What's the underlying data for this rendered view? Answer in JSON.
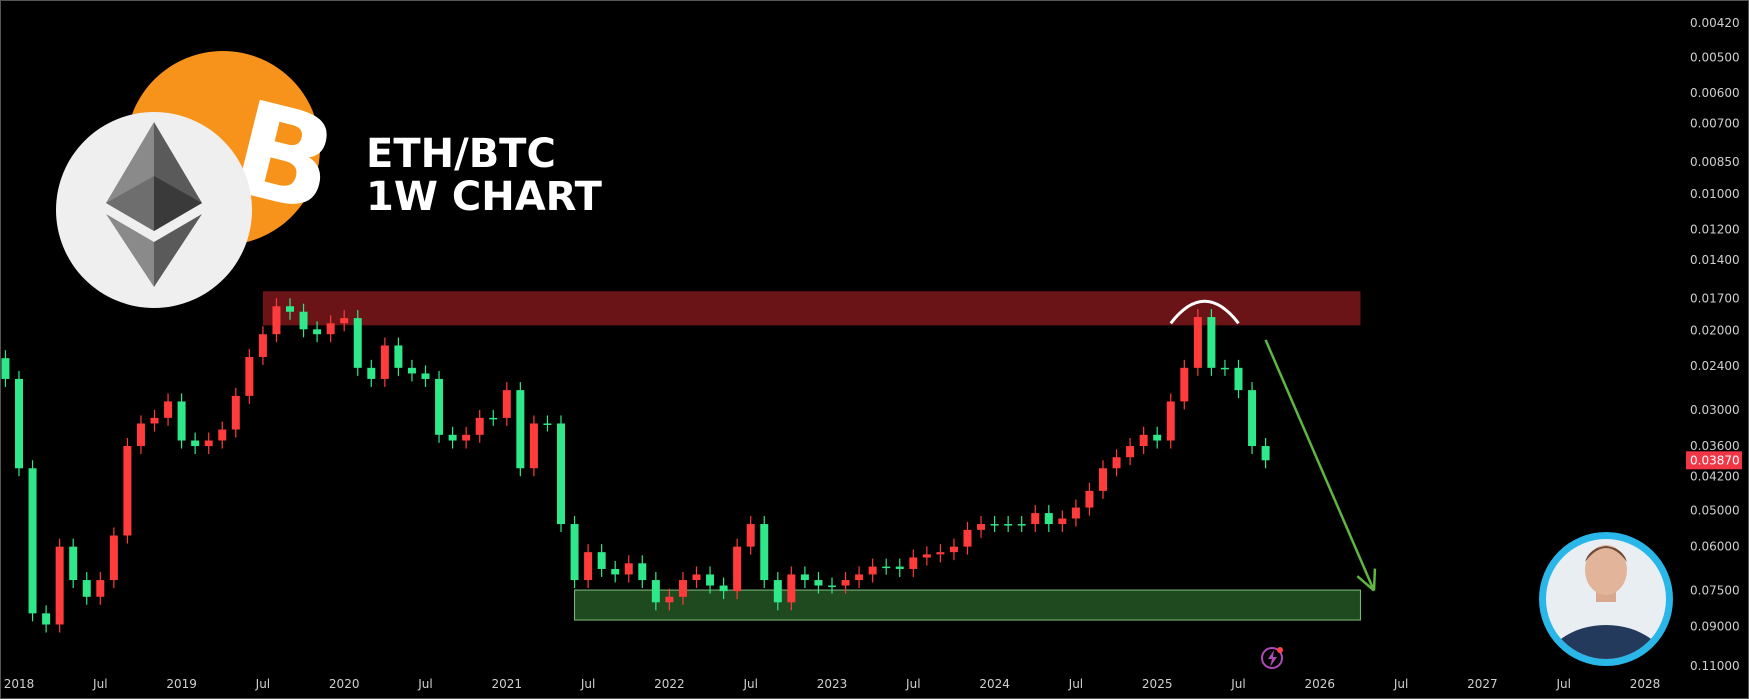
{
  "chart_data": {
    "type": "candlestick",
    "title_lines": [
      "ETH/BTC",
      "1W CHART"
    ],
    "y_scale": "log",
    "y_inverted": true,
    "ylim": [
      0.0042,
      0.11
    ],
    "xlim": [
      "2018-01",
      "2028-01"
    ],
    "y_ticks": [
      "0.00420",
      "0.00500",
      "0.00600",
      "0.00700",
      "0.00850",
      "0.01000",
      "0.01200",
      "0.01400",
      "0.01700",
      "0.02000",
      "0.02400",
      "0.03000",
      "0.03600",
      "0.04200",
      "0.05000",
      "0.06000",
      "0.07500",
      "0.09000",
      "0.11000"
    ],
    "x_ticks": [
      {
        "date": "2018-01",
        "label": "2018"
      },
      {
        "date": "2018-07",
        "label": "Jul"
      },
      {
        "date": "2019-01",
        "label": "2019"
      },
      {
        "date": "2019-07",
        "label": "Jul"
      },
      {
        "date": "2020-01",
        "label": "2020"
      },
      {
        "date": "2020-07",
        "label": "Jul"
      },
      {
        "date": "2021-01",
        "label": "2021"
      },
      {
        "date": "2021-07",
        "label": "Jul"
      },
      {
        "date": "2022-01",
        "label": "2022"
      },
      {
        "date": "2022-07",
        "label": "Jul"
      },
      {
        "date": "2023-01",
        "label": "2023"
      },
      {
        "date": "2023-07",
        "label": "Jul"
      },
      {
        "date": "2024-01",
        "label": "2024"
      },
      {
        "date": "2024-07",
        "label": "Jul"
      },
      {
        "date": "2025-01",
        "label": "2025"
      },
      {
        "date": "2025-07",
        "label": "Jul"
      },
      {
        "date": "2026-01",
        "label": "2026"
      },
      {
        "date": "2026-07",
        "label": "Jul"
      },
      {
        "date": "2027-01",
        "label": "2027"
      },
      {
        "date": "2027-07",
        "label": "Jul"
      },
      {
        "date": "2028-01",
        "label": "2028"
      }
    ],
    "last_price": "0.03870",
    "closes": [
      [
        "2017-12",
        0.0256
      ],
      [
        "2018-01",
        0.0403
      ],
      [
        "2018-02",
        0.0842
      ],
      [
        "2018-03",
        0.0891
      ],
      [
        "2018-04",
        0.06
      ],
      [
        "2018-05",
        0.0711
      ],
      [
        "2018-06",
        0.0774
      ],
      [
        "2018-07",
        0.0711
      ],
      [
        "2018-08",
        0.0567
      ],
      [
        "2018-09",
        0.036
      ],
      [
        "2018-10",
        0.0321
      ],
      [
        "2018-11",
        0.0312
      ],
      [
        "2018-12",
        0.0287
      ],
      [
        "2019-01",
        0.035
      ],
      [
        "2019-02",
        0.036
      ],
      [
        "2019-03",
        0.035
      ],
      [
        "2019-04",
        0.0331
      ],
      [
        "2019-05",
        0.0279
      ],
      [
        "2019-06",
        0.0229
      ],
      [
        "2019-07",
        0.0204
      ],
      [
        "2019-08",
        0.0177
      ],
      [
        "2019-09",
        0.0182
      ],
      [
        "2019-10",
        0.0199
      ],
      [
        "2019-11",
        0.0204
      ],
      [
        "2019-12",
        0.0193
      ],
      [
        "2020-01",
        0.0188
      ],
      [
        "2020-02",
        0.0242
      ],
      [
        "2020-03",
        0.0256
      ],
      [
        "2020-04",
        0.0216
      ],
      [
        "2020-05",
        0.0242
      ],
      [
        "2020-06",
        0.0249
      ],
      [
        "2020-07",
        0.0256
      ],
      [
        "2020-08",
        0.034
      ],
      [
        "2020-09",
        0.035
      ],
      [
        "2020-10",
        0.034
      ],
      [
        "2020-11",
        0.0312
      ],
      [
        "2020-12",
        0.0312
      ],
      [
        "2021-01",
        0.0271
      ],
      [
        "2021-02",
        0.0403
      ],
      [
        "2021-03",
        0.0321
      ],
      [
        "2021-04",
        0.0321
      ],
      [
        "2021-05",
        0.0535
      ],
      [
        "2021-06",
        0.0711
      ],
      [
        "2021-07",
        0.0617
      ],
      [
        "2021-08",
        0.0672
      ],
      [
        "2021-09",
        0.0691
      ],
      [
        "2021-10",
        0.0653
      ],
      [
        "2021-11",
        0.0711
      ],
      [
        "2021-12",
        0.0796
      ],
      [
        "2022-01",
        0.0774
      ],
      [
        "2022-02",
        0.0711
      ],
      [
        "2022-03",
        0.0691
      ],
      [
        "2022-04",
        0.0731
      ],
      [
        "2022-05",
        0.0752
      ],
      [
        "2022-06",
        0.06
      ],
      [
        "2022-07",
        0.0535
      ],
      [
        "2022-08",
        0.0711
      ],
      [
        "2022-09",
        0.0796
      ],
      [
        "2022-10",
        0.0691
      ],
      [
        "2022-11",
        0.0711
      ],
      [
        "2022-12",
        0.0731
      ],
      [
        "2023-01",
        0.0731
      ],
      [
        "2023-02",
        0.0711
      ],
      [
        "2023-03",
        0.0691
      ],
      [
        "2023-04",
        0.0664
      ],
      [
        "2023-05",
        0.0664
      ],
      [
        "2023-06",
        0.0672
      ],
      [
        "2023-07",
        0.0634
      ],
      [
        "2023-08",
        0.0624
      ],
      [
        "2023-09",
        0.0617
      ],
      [
        "2023-10",
        0.06
      ],
      [
        "2023-11",
        0.0551
      ],
      [
        "2023-12",
        0.0535
      ],
      [
        "2024-01",
        0.0535
      ],
      [
        "2024-02",
        0.0535
      ],
      [
        "2024-03",
        0.0535
      ],
      [
        "2024-04",
        0.0506
      ],
      [
        "2024-05",
        0.0535
      ],
      [
        "2024-06",
        0.052
      ],
      [
        "2024-07",
        0.0492
      ],
      [
        "2024-08",
        0.0452
      ],
      [
        "2024-09",
        0.0403
      ],
      [
        "2024-10",
        0.0381
      ],
      [
        "2024-11",
        0.036
      ],
      [
        "2024-12",
        0.034
      ],
      [
        "2025-01",
        0.035
      ],
      [
        "2025-02",
        0.0287
      ],
      [
        "2025-03",
        0.0242
      ],
      [
        "2025-04",
        0.0187
      ],
      [
        "2025-05",
        0.0242
      ],
      [
        "2025-06",
        0.0242
      ],
      [
        "2025-07",
        0.0271
      ],
      [
        "2025-08",
        0.036
      ],
      [
        "2025-09",
        0.0387
      ]
    ],
    "zones": [
      {
        "label": "resistance",
        "from": "2019-07",
        "to": "2026-04",
        "price_low": 0.0164,
        "price_high": 0.0195,
        "color": "#6b1418"
      },
      {
        "label": "support",
        "from": "2021-06",
        "to": "2026-04",
        "price_low": 0.0748,
        "price_high": 0.0871,
        "color": "#1f4a1f"
      }
    ],
    "arrow": {
      "from": [
        "2025-09",
        0.021
      ],
      "to": [
        "2026-05",
        0.075
      ],
      "color": "#5fb640"
    },
    "arc_over_peak": {
      "from": "2025-02",
      "to": "2025-07",
      "color": "#ffffff"
    },
    "colors": {
      "up": "#2ee88a",
      "down": "#ff3b3b",
      "last_price_bg": "#f23645"
    }
  },
  "logos": {
    "btc": "bitcoin-logo",
    "eth": "ethereum-logo",
    "btc_color": "#f7931a",
    "eth_bg": "#f0f0f0"
  },
  "icons": {
    "lightning": "lightning-icon"
  },
  "avatar": {
    "ring_color": "#29b6e8"
  }
}
